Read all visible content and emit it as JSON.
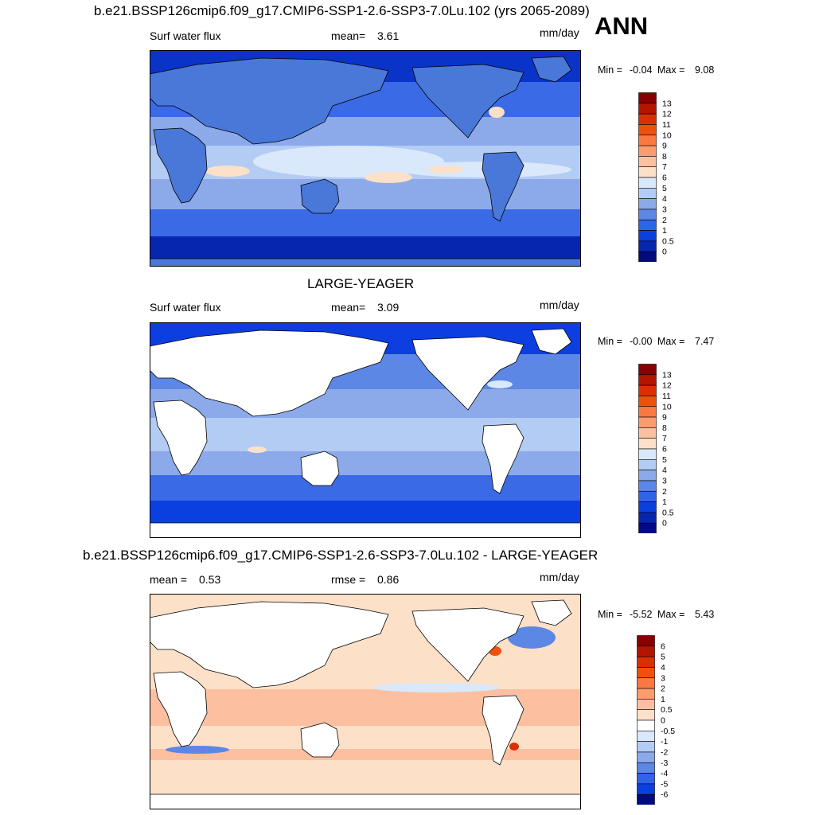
{
  "header": {
    "title": "b.e21.BSSP126cmip6.f09_g17.CMIP6-SSP1-2.6-SSP3-7.0Lu.102 (yrs 2065-2089)",
    "season": "ANN"
  },
  "colors": {
    "land_fill": "#4a78d8",
    "ocean_base": "#0c3ee0",
    "diff_base": "#fcdcc8",
    "frame": "#000000"
  },
  "panels": [
    {
      "id": "model",
      "title": "",
      "left": "Surf water flux",
      "mean_label": "mean=",
      "mean_value": "3.61",
      "units": "mm/day",
      "min_label": "Min =",
      "min_value": "-0.04",
      "max_label": "Max =",
      "max_value": "9.08",
      "land_masked": false,
      "colorbar": {
        "labels": [
          "13",
          "12",
          "11",
          "10",
          "9",
          "8",
          "7",
          "6",
          "5",
          "4",
          "3",
          "2",
          "1",
          "0.5",
          "0"
        ],
        "colors": [
          "#880000",
          "#b51400",
          "#d93000",
          "#f0500e",
          "#fa7842",
          "#fb9c6c",
          "#fcc0a0",
          "#fde0c8",
          "#d9e8fa",
          "#b3ccf4",
          "#8caaea",
          "#5d87e4",
          "#2f64e6",
          "#0a40e0",
          "#0626b0",
          "#020a80"
        ]
      }
    },
    {
      "id": "obs",
      "title": "LARGE-YEAGER",
      "left": "Surf water flux",
      "mean_label": "mean=",
      "mean_value": "3.09",
      "units": "mm/day",
      "min_label": "Min =",
      "min_value": "-0.00",
      "max_label": "Max =",
      "max_value": "7.47",
      "land_masked": true,
      "colorbar": {
        "labels": [
          "13",
          "12",
          "11",
          "10",
          "9",
          "8",
          "7",
          "6",
          "5",
          "4",
          "3",
          "2",
          "1",
          "0.5",
          "0"
        ],
        "colors": [
          "#880000",
          "#b51400",
          "#d93000",
          "#f0500e",
          "#fa7842",
          "#fb9c6c",
          "#fcc0a0",
          "#fde0c8",
          "#d9e8fa",
          "#b3ccf4",
          "#8caaea",
          "#5d87e4",
          "#2f64e6",
          "#0a40e0",
          "#0626b0",
          "#020a80"
        ]
      }
    },
    {
      "id": "diff",
      "title": "b.e21.BSSP126cmip6.f09_g17.CMIP6-SSP1-2.6-SSP3-7.0Lu.102 - LARGE-YEAGER",
      "left": "mean =",
      "left_value": "0.53",
      "mean_label": "rmse =",
      "mean_value": "0.86",
      "units": "mm/day",
      "min_label": "Min =",
      "min_value": "-5.52",
      "max_label": "Max =",
      "max_value": "5.43",
      "land_masked": true,
      "colorbar": {
        "labels": [
          "6",
          "5",
          "4",
          "3",
          "2",
          "1",
          "0.5",
          "0",
          "-0.5",
          "-1",
          "-2",
          "-3",
          "-4",
          "-5",
          "-6"
        ],
        "colors": [
          "#880000",
          "#b51400",
          "#d93000",
          "#f0500e",
          "#fa7842",
          "#fb9c6c",
          "#fcc0a0",
          "#fde0c8",
          "#ffffff",
          "#d9e8fa",
          "#b3ccf4",
          "#8caaea",
          "#5d87e4",
          "#2f64e6",
          "#0a40e0",
          "#020a80"
        ]
      }
    }
  ]
}
